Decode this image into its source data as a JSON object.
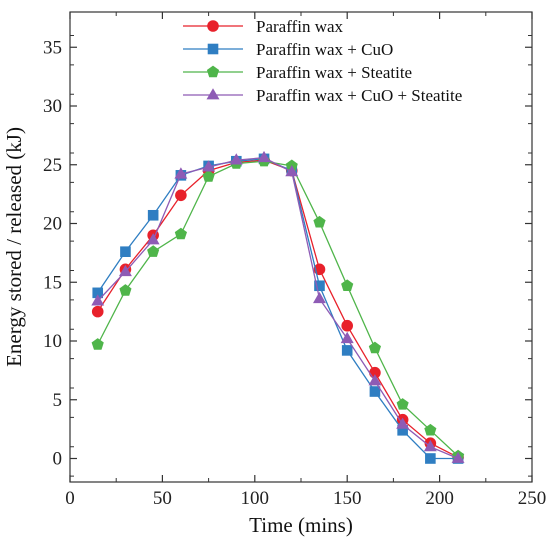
{
  "chart_data": {
    "type": "line",
    "title": "",
    "xlabel": "Time (mins)",
    "ylabel": "Energy stored / released (kJ)",
    "xlim": [
      0,
      250
    ],
    "ylim": [
      -2,
      38
    ],
    "xticks": [
      0,
      50,
      100,
      150,
      200,
      250
    ],
    "yticks": [
      0,
      5,
      10,
      15,
      20,
      25,
      30,
      35
    ],
    "grid": false,
    "legend_position": "top-center",
    "x": [
      15,
      30,
      45,
      60,
      75,
      90,
      105,
      120,
      135,
      150,
      165,
      180,
      195,
      210
    ],
    "series": [
      {
        "name": "Paraffin wax",
        "color": "#e8212b",
        "marker": "circle",
        "values": [
          12.5,
          16.1,
          19.0,
          22.4,
          24.5,
          25.2,
          25.4,
          24.5,
          16.1,
          11.3,
          7.3,
          3.3,
          1.3,
          0.1
        ]
      },
      {
        "name": "Paraffin wax + CuO",
        "color": "#2f7ec2",
        "marker": "square",
        "values": [
          14.1,
          17.6,
          20.7,
          24.1,
          24.9,
          25.3,
          25.5,
          24.5,
          14.7,
          9.2,
          5.7,
          2.4,
          0.0,
          0.0
        ]
      },
      {
        "name": "Paraffin wax + Steatite",
        "color": "#4fb54a",
        "marker": "pentagon",
        "values": [
          9.7,
          14.3,
          17.6,
          19.1,
          24.0,
          25.1,
          25.3,
          24.9,
          20.1,
          14.7,
          9.4,
          4.6,
          2.4,
          0.2
        ]
      },
      {
        "name": "Paraffin wax + CuO + Steatite",
        "color": "#8e5bb5",
        "marker": "triangle",
        "values": [
          13.4,
          15.9,
          18.6,
          24.2,
          24.8,
          25.4,
          25.6,
          24.4,
          13.6,
          10.2,
          6.6,
          2.9,
          1.0,
          0.0
        ]
      }
    ]
  }
}
